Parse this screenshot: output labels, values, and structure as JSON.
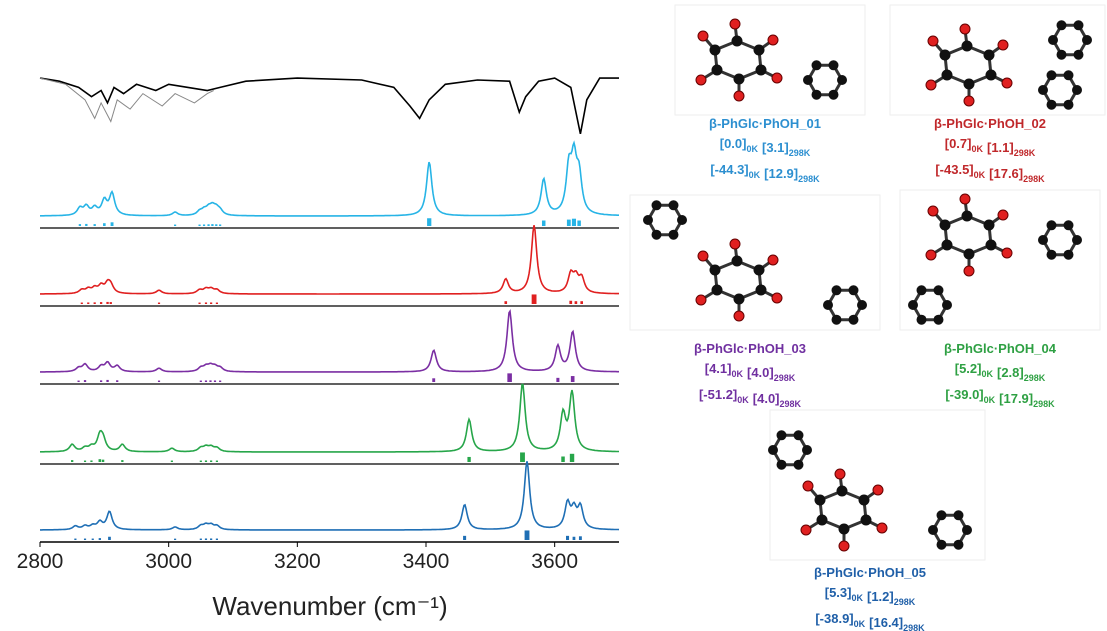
{
  "chart_data": {
    "type": "line",
    "xlim": [
      2800,
      3700
    ],
    "xticks": [
      2800,
      3000,
      3200,
      3400,
      3600
    ],
    "xlabel": "Wavenumber (cm⁻¹)",
    "experimental": [
      {
        "color": "#000000",
        "x": [
          2800,
          2830,
          2860,
          2880,
          2895,
          2905,
          2915,
          2930,
          2950,
          2980,
          3000,
          3030,
          3060,
          3080,
          3120,
          3200,
          3300,
          3350,
          3375,
          3390,
          3405,
          3430,
          3480,
          3530,
          3545,
          3555,
          3575,
          3600,
          3625,
          3640,
          3650,
          3670,
          3700
        ],
        "values": [
          0.05,
          0.1,
          0.2,
          0.35,
          0.25,
          0.45,
          0.2,
          0.3,
          0.15,
          0.25,
          0.15,
          0.2,
          0.25,
          0.2,
          0.1,
          0.05,
          0.08,
          0.2,
          0.5,
          0.7,
          0.4,
          0.15,
          0.08,
          0.1,
          0.6,
          0.35,
          0.1,
          0.05,
          0.2,
          0.95,
          0.4,
          0.05,
          0.05
        ]
      },
      {
        "color": "#888888",
        "x": [
          2800,
          2840,
          2870,
          2885,
          2895,
          2910,
          2920,
          2940,
          2960,
          2990,
          3010,
          3040,
          3060,
          3070
        ],
        "values": [
          0.05,
          0.15,
          0.4,
          0.7,
          0.45,
          0.75,
          0.4,
          0.55,
          0.3,
          0.5,
          0.3,
          0.45,
          0.3,
          0.25
        ]
      }
    ],
    "series": [
      {
        "color": "#27b4e6",
        "x": [
          2862,
          2872,
          2885,
          2900,
          2912,
          3010,
          3048,
          3055,
          3062,
          3068,
          3074,
          3080,
          3405,
          3583,
          3622,
          3630,
          3638
        ],
        "values": [
          0.1,
          0.12,
          0.1,
          0.2,
          0.3,
          0.05,
          0.05,
          0.06,
          0.08,
          0.1,
          0.08,
          0.06,
          0.75,
          0.5,
          0.6,
          0.7,
          0.5
        ]
      },
      {
        "color": "#e02020",
        "x": [
          2865,
          2875,
          2885,
          2895,
          2905,
          2910,
          2985,
          3048,
          3058,
          3066,
          3075,
          3524,
          3568,
          3625,
          3633,
          3642
        ],
        "values": [
          0.05,
          0.06,
          0.07,
          0.1,
          0.12,
          0.1,
          0.05,
          0.05,
          0.06,
          0.06,
          0.05,
          0.2,
          0.95,
          0.25,
          0.2,
          0.2
        ]
      },
      {
        "color": "#7b2fa3",
        "x": [
          2860,
          2870,
          2895,
          2905,
          2920,
          2985,
          3050,
          3058,
          3065,
          3072,
          3080,
          3412,
          3530,
          3605,
          3628
        ],
        "values": [
          0.05,
          0.1,
          0.07,
          0.12,
          0.08,
          0.05,
          0.05,
          0.06,
          0.07,
          0.06,
          0.05,
          0.3,
          0.85,
          0.35,
          0.55
        ]
      },
      {
        "color": "#27a64a",
        "x": [
          2850,
          2870,
          2880,
          2893,
          2898,
          2928,
          3005,
          3050,
          3058,
          3066,
          3075,
          3467,
          3550,
          3613,
          3627
        ],
        "values": [
          0.1,
          0.05,
          0.06,
          0.2,
          0.15,
          0.1,
          0.05,
          0.05,
          0.06,
          0.06,
          0.05,
          0.45,
          0.95,
          0.5,
          0.8
        ]
      },
      {
        "color": "#1f6fb5",
        "x": [
          2855,
          2870,
          2882,
          2893,
          2908,
          3010,
          3050,
          3058,
          3066,
          3075,
          3460,
          3557,
          3620,
          3630,
          3640
        ],
        "values": [
          0.05,
          0.05,
          0.05,
          0.1,
          0.25,
          0.04,
          0.05,
          0.06,
          0.06,
          0.05,
          0.35,
          0.95,
          0.35,
          0.25,
          0.3
        ]
      }
    ],
    "molecules": [
      {
        "name": "β-PhGlc·PhOH_01",
        "color": "#2c8fd0",
        "lines": [
          [
            {
              "text": "[0.0]",
              "sub": "0K"
            },
            {
              "text": "[3.1]",
              "sub": "298K"
            }
          ],
          [
            {
              "text": "[-44.3]",
              "sub": "0K"
            },
            {
              "text": "[12.9]",
              "sub": "298K"
            }
          ]
        ]
      },
      {
        "name": "β-PhGlc·PhOH_02",
        "color": "#c0282b",
        "lines": [
          [
            {
              "text": "[0.7]",
              "sub": "0K"
            },
            {
              "text": "[1.1]",
              "sub": "298K"
            }
          ],
          [
            {
              "text": "[-43.5]",
              "sub": "0K"
            },
            {
              "text": "[17.6]",
              "sub": "298K"
            }
          ]
        ]
      },
      {
        "name": "β-PhGlc·PhOH_03",
        "color": "#7030a0",
        "lines": [
          [
            {
              "text": "[4.1]",
              "sub": "0K"
            },
            {
              "text": "[4.0]",
              "sub": "298K"
            }
          ],
          [
            {
              "text": "[-51.2]",
              "sub": "0K"
            },
            {
              "text": "[4.0]",
              "sub": "298K"
            }
          ]
        ]
      },
      {
        "name": "β-PhGlc·PhOH_04",
        "color": "#2ea043",
        "lines": [
          [
            {
              "text": "[5.2]",
              "sub": "0K"
            },
            {
              "text": "[2.8]",
              "sub": "298K"
            }
          ],
          [
            {
              "text": "[-39.0]",
              "sub": "0K"
            },
            {
              "text": "[17.9]",
              "sub": "298K"
            }
          ]
        ]
      },
      {
        "name": "β-PhGlc·PhOH_05",
        "color": "#1f5fa8",
        "lines": [
          [
            {
              "text": "[5.3]",
              "sub": "0K"
            },
            {
              "text": "[1.2]",
              "sub": "298K"
            }
          ],
          [
            {
              "text": "[-38.9]",
              "sub": "0K"
            },
            {
              "text": "[16.4]",
              "sub": "298K"
            }
          ]
        ]
      }
    ]
  }
}
